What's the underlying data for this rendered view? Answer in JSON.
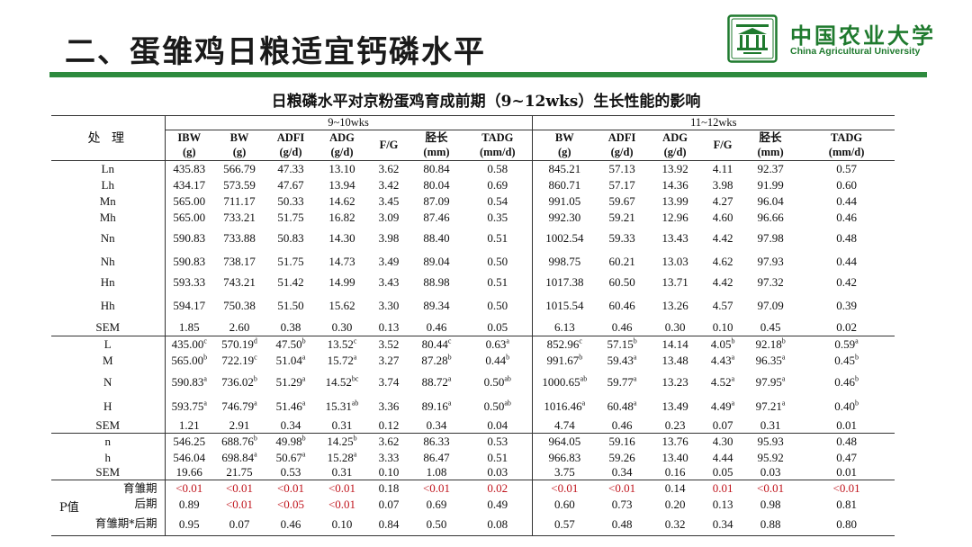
{
  "header": {
    "title": "二、蛋雏鸡日粮适宜钙磷水平",
    "university_cn": "中国农业大学",
    "university_en": "China Agricultural University",
    "brand_color": "#2e8b3e"
  },
  "table": {
    "title": "日粮磷水平对京粉蛋鸡育成前期（9~12wks）生长性能的影响",
    "treatment_header": "处 理",
    "groups": [
      "9~10wks",
      "11~12wks"
    ],
    "columns": [
      {
        "name": "IBW",
        "unit": "(g)"
      },
      {
        "name": "BW",
        "unit": "(g)"
      },
      {
        "name": "ADFI",
        "unit": "(g/d)"
      },
      {
        "name": "ADG",
        "unit": "(g/d)"
      },
      {
        "name": "F/G",
        "unit": ""
      },
      {
        "name": "胫长",
        "unit": "(mm)"
      },
      {
        "name": "TADG",
        "unit": "(mm/d)"
      },
      {
        "name": "BW",
        "unit": "(g)"
      },
      {
        "name": "ADFI",
        "unit": "(g/d)"
      },
      {
        "name": "ADG",
        "unit": "(g/d)"
      },
      {
        "name": "F/G",
        "unit": ""
      },
      {
        "name": "胫长",
        "unit": "(mm)"
      },
      {
        "name": "TADG",
        "unit": "(mm/d)"
      }
    ],
    "rows": [
      {
        "label": "Ln",
        "cells": [
          [
            "435.83",
            ""
          ],
          [
            "566.79",
            ""
          ],
          [
            "47.33",
            ""
          ],
          [
            "13.10",
            ""
          ],
          [
            "3.62",
            ""
          ],
          [
            "80.84",
            ""
          ],
          [
            "0.58",
            ""
          ],
          [
            "845.21",
            ""
          ],
          [
            "57.13",
            ""
          ],
          [
            "13.92",
            ""
          ],
          [
            "4.11",
            ""
          ],
          [
            "92.37",
            ""
          ],
          [
            "0.57",
            ""
          ]
        ]
      },
      {
        "label": "Lh",
        "cells": [
          [
            "434.17",
            ""
          ],
          [
            "573.59",
            ""
          ],
          [
            "47.67",
            ""
          ],
          [
            "13.94",
            ""
          ],
          [
            "3.42",
            ""
          ],
          [
            "80.04",
            ""
          ],
          [
            "0.69",
            ""
          ],
          [
            "860.71",
            ""
          ],
          [
            "57.17",
            ""
          ],
          [
            "14.36",
            ""
          ],
          [
            "3.98",
            ""
          ],
          [
            "91.99",
            ""
          ],
          [
            "0.60",
            ""
          ]
        ]
      },
      {
        "label": "Mn",
        "cells": [
          [
            "565.00",
            ""
          ],
          [
            "711.17",
            ""
          ],
          [
            "50.33",
            ""
          ],
          [
            "14.62",
            ""
          ],
          [
            "3.45",
            ""
          ],
          [
            "87.09",
            ""
          ],
          [
            "0.54",
            ""
          ],
          [
            "991.05",
            ""
          ],
          [
            "59.67",
            ""
          ],
          [
            "13.99",
            ""
          ],
          [
            "4.27",
            ""
          ],
          [
            "96.04",
            ""
          ],
          [
            "0.44",
            ""
          ]
        ]
      },
      {
        "label": "Mh",
        "cells": [
          [
            "565.00",
            ""
          ],
          [
            "733.21",
            ""
          ],
          [
            "51.75",
            ""
          ],
          [
            "16.82",
            ""
          ],
          [
            "3.09",
            ""
          ],
          [
            "87.46",
            ""
          ],
          [
            "0.35",
            ""
          ],
          [
            "992.30",
            ""
          ],
          [
            "59.21",
            ""
          ],
          [
            "12.96",
            ""
          ],
          [
            "4.60",
            ""
          ],
          [
            "96.66",
            ""
          ],
          [
            "0.46",
            ""
          ]
        ]
      },
      {
        "label": "Nn",
        "cells": [
          [
            "590.83",
            ""
          ],
          [
            "733.88",
            ""
          ],
          [
            "50.83",
            ""
          ],
          [
            "14.30",
            ""
          ],
          [
            "3.98",
            ""
          ],
          [
            "88.40",
            ""
          ],
          [
            "0.51",
            ""
          ],
          [
            "1002.54",
            ""
          ],
          [
            "59.33",
            ""
          ],
          [
            "13.43",
            ""
          ],
          [
            "4.42",
            ""
          ],
          [
            "97.98",
            ""
          ],
          [
            "0.48",
            ""
          ]
        ]
      },
      {
        "label": "Nh",
        "cells": [
          [
            "590.83",
            ""
          ],
          [
            "738.17",
            ""
          ],
          [
            "51.75",
            ""
          ],
          [
            "14.73",
            ""
          ],
          [
            "3.49",
            ""
          ],
          [
            "89.04",
            ""
          ],
          [
            "0.50",
            ""
          ],
          [
            "998.75",
            ""
          ],
          [
            "60.21",
            ""
          ],
          [
            "13.03",
            ""
          ],
          [
            "4.62",
            ""
          ],
          [
            "97.93",
            ""
          ],
          [
            "0.44",
            ""
          ]
        ]
      },
      {
        "label": "Hn",
        "cells": [
          [
            "593.33",
            ""
          ],
          [
            "743.21",
            ""
          ],
          [
            "51.42",
            ""
          ],
          [
            "14.99",
            ""
          ],
          [
            "3.43",
            ""
          ],
          [
            "88.98",
            ""
          ],
          [
            "0.51",
            ""
          ],
          [
            "1017.38",
            ""
          ],
          [
            "60.50",
            ""
          ],
          [
            "13.71",
            ""
          ],
          [
            "4.42",
            ""
          ],
          [
            "97.32",
            ""
          ],
          [
            "0.42",
            ""
          ]
        ]
      },
      {
        "label": "Hh",
        "cells": [
          [
            "594.17",
            ""
          ],
          [
            "750.38",
            ""
          ],
          [
            "51.50",
            ""
          ],
          [
            "15.62",
            ""
          ],
          [
            "3.30",
            ""
          ],
          [
            "89.34",
            ""
          ],
          [
            "0.50",
            ""
          ],
          [
            "1015.54",
            ""
          ],
          [
            "60.46",
            ""
          ],
          [
            "13.26",
            ""
          ],
          [
            "4.57",
            ""
          ],
          [
            "97.09",
            ""
          ],
          [
            "0.39",
            ""
          ]
        ]
      },
      {
        "label": "SEM",
        "cells": [
          [
            "1.85",
            ""
          ],
          [
            "2.60",
            ""
          ],
          [
            "0.38",
            ""
          ],
          [
            "0.30",
            ""
          ],
          [
            "0.13",
            ""
          ],
          [
            "0.46",
            ""
          ],
          [
            "0.05",
            ""
          ],
          [
            "6.13",
            ""
          ],
          [
            "0.46",
            ""
          ],
          [
            "0.30",
            ""
          ],
          [
            "0.10",
            ""
          ],
          [
            "0.45",
            ""
          ],
          [
            "0.02",
            ""
          ]
        ]
      },
      {
        "label": "L",
        "cells": [
          [
            "435.00",
            "c"
          ],
          [
            "570.19",
            "d"
          ],
          [
            "47.50",
            "b"
          ],
          [
            "13.52",
            "c"
          ],
          [
            "3.52",
            ""
          ],
          [
            "80.44",
            "c"
          ],
          [
            "0.63",
            "a"
          ],
          [
            "852.96",
            "c"
          ],
          [
            "57.15",
            "b"
          ],
          [
            "14.14",
            ""
          ],
          [
            "4.05",
            "b"
          ],
          [
            "92.18",
            "b"
          ],
          [
            "0.59",
            "a"
          ]
        ]
      },
      {
        "label": "M",
        "cells": [
          [
            "565.00",
            "b"
          ],
          [
            "722.19",
            "c"
          ],
          [
            "51.04",
            "a"
          ],
          [
            "15.72",
            "a"
          ],
          [
            "3.27",
            ""
          ],
          [
            "87.28",
            "b"
          ],
          [
            "0.44",
            "b"
          ],
          [
            "991.67",
            "b"
          ],
          [
            "59.43",
            "a"
          ],
          [
            "13.48",
            ""
          ],
          [
            "4.43",
            "a"
          ],
          [
            "96.35",
            "a"
          ],
          [
            "0.45",
            "b"
          ]
        ]
      },
      {
        "label": "N",
        "cells": [
          [
            "590.83",
            "a"
          ],
          [
            "736.02",
            "b"
          ],
          [
            "51.29",
            "a"
          ],
          [
            "14.52",
            "bc"
          ],
          [
            "3.74",
            ""
          ],
          [
            "88.72",
            "a"
          ],
          [
            "0.50",
            "ab"
          ],
          [
            "1000.65",
            "ab"
          ],
          [
            "59.77",
            "a"
          ],
          [
            "13.23",
            ""
          ],
          [
            "4.52",
            "a"
          ],
          [
            "97.95",
            "a"
          ],
          [
            "0.46",
            "b"
          ]
        ]
      },
      {
        "label": "H",
        "cells": [
          [
            "593.75",
            "a"
          ],
          [
            "746.79",
            "a"
          ],
          [
            "51.46",
            "a"
          ],
          [
            "15.31",
            "ab"
          ],
          [
            "3.36",
            ""
          ],
          [
            "89.16",
            "a"
          ],
          [
            "0.50",
            "ab"
          ],
          [
            "1016.46",
            "a"
          ],
          [
            "60.48",
            "a"
          ],
          [
            "13.49",
            ""
          ],
          [
            "4.49",
            "a"
          ],
          [
            "97.21",
            "a"
          ],
          [
            "0.40",
            "b"
          ]
        ]
      },
      {
        "label": "SEM",
        "cells": [
          [
            "1.21",
            ""
          ],
          [
            "2.91",
            ""
          ],
          [
            "0.34",
            ""
          ],
          [
            "0.31",
            ""
          ],
          [
            "0.12",
            ""
          ],
          [
            "0.34",
            ""
          ],
          [
            "0.04",
            ""
          ],
          [
            "4.74",
            ""
          ],
          [
            "0.46",
            ""
          ],
          [
            "0.23",
            ""
          ],
          [
            "0.07",
            ""
          ],
          [
            "0.31",
            ""
          ],
          [
            "0.01",
            ""
          ]
        ]
      },
      {
        "label": "n",
        "cells": [
          [
            "546.25",
            ""
          ],
          [
            "688.76",
            "b"
          ],
          [
            "49.98",
            "b"
          ],
          [
            "14.25",
            "b"
          ],
          [
            "3.62",
            ""
          ],
          [
            "86.33",
            ""
          ],
          [
            "0.53",
            ""
          ],
          [
            "964.05",
            ""
          ],
          [
            "59.16",
            ""
          ],
          [
            "13.76",
            ""
          ],
          [
            "4.30",
            ""
          ],
          [
            "95.93",
            ""
          ],
          [
            "0.48",
            ""
          ]
        ]
      },
      {
        "label": "h",
        "cells": [
          [
            "546.04",
            ""
          ],
          [
            "698.84",
            "a"
          ],
          [
            "50.67",
            "a"
          ],
          [
            "15.28",
            "a"
          ],
          [
            "3.33",
            ""
          ],
          [
            "86.47",
            ""
          ],
          [
            "0.51",
            ""
          ],
          [
            "966.83",
            ""
          ],
          [
            "59.26",
            ""
          ],
          [
            "13.40",
            ""
          ],
          [
            "4.44",
            ""
          ],
          [
            "95.92",
            ""
          ],
          [
            "0.47",
            ""
          ]
        ]
      },
      {
        "label": "SEM",
        "cells": [
          [
            "19.66",
            ""
          ],
          [
            "21.75",
            ""
          ],
          [
            "0.53",
            ""
          ],
          [
            "0.31",
            ""
          ],
          [
            "0.10",
            ""
          ],
          [
            "1.08",
            ""
          ],
          [
            "0.03",
            ""
          ],
          [
            "3.75",
            ""
          ],
          [
            "0.34",
            ""
          ],
          [
            "0.16",
            ""
          ],
          [
            "0.05",
            ""
          ],
          [
            "0.03",
            ""
          ],
          [
            "0.01",
            ""
          ]
        ]
      }
    ],
    "pvalue_label": "P值",
    "pvalue_rows": [
      {
        "label": "育雏期",
        "values": [
          "<0.01",
          "<0.01",
          "<0.01",
          "<0.01",
          "0.18",
          "<0.01",
          "0.02",
          "<0.01",
          "<0.01",
          "0.14",
          "0.01",
          "<0.01",
          "<0.01"
        ]
      },
      {
        "label": "后期",
        "values": [
          "0.89",
          "<0.01",
          "<0.05",
          "<0.01",
          "0.07",
          "0.69",
          "0.49",
          "0.60",
          "0.73",
          "0.20",
          "0.13",
          "0.98",
          "0.81"
        ]
      },
      {
        "label": "育雏期*后期",
        "values": [
          "0.95",
          "0.07",
          "0.46",
          "0.10",
          "0.84",
          "0.50",
          "0.08",
          "0.57",
          "0.48",
          "0.32",
          "0.34",
          "0.88",
          "0.80"
        ]
      }
    ],
    "significant_color": "#c0141c"
  }
}
